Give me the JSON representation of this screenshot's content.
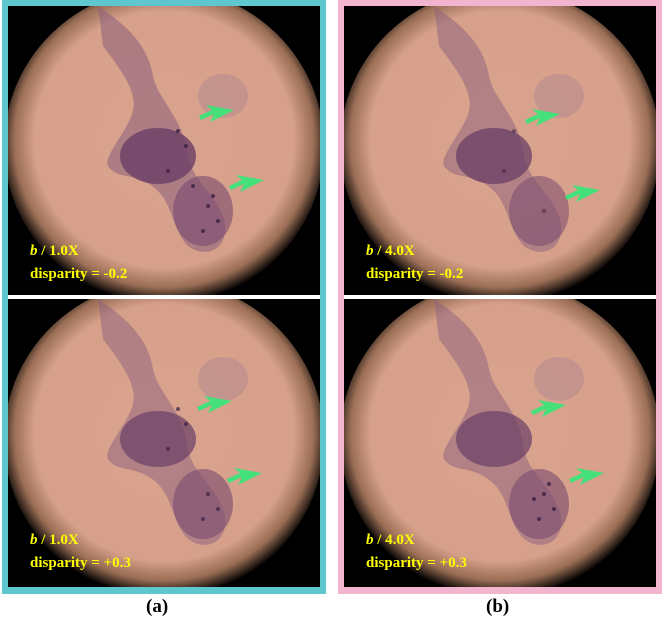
{
  "panels": {
    "a": {
      "top": {
        "scale_b": "b",
        "scale_rest": " / 1.0X",
        "disparity": "disparity =  -0.2"
      },
      "bottom": {
        "scale_b": "b",
        "scale_rest": " / 1.0X",
        "disparity": "disparity = +0.3"
      },
      "label": "(a)",
      "frame_color": "#5ec6cf"
    },
    "b": {
      "top": {
        "scale_b": "b",
        "scale_rest": "  / 4.0X",
        "disparity": "disparity =  -0.2"
      },
      "bottom": {
        "scale_b": "b",
        "scale_rest": "  / 4.0X",
        "disparity": "disparity =  +0.3"
      },
      "label": "(b)",
      "frame_color": "#f2b4cf"
    }
  },
  "arrow_color": "#44e07a",
  "caption_color": "#ffff00"
}
